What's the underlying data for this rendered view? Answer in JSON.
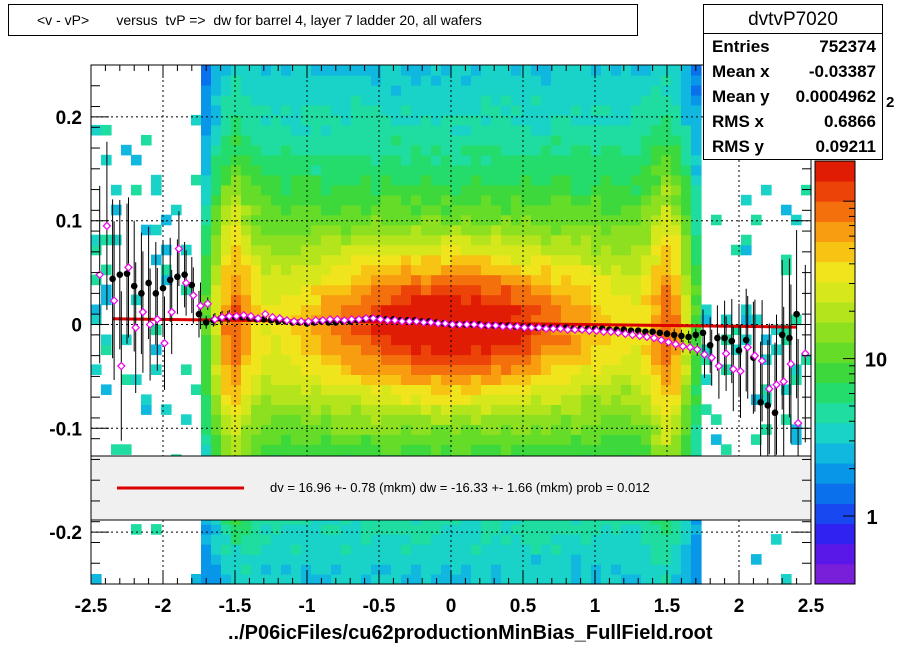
{
  "chart_data": {
    "type": "heatmap",
    "title": "<v - vP>       versus  tvP =>  dw for barrel 4, layer 7 ladder 20, all wafers",
    "xlabel": "../P06icFiles/cu62productionMinBias_FullField.root",
    "ylabel": "",
    "xlim": [
      -2.5,
      2.5
    ],
    "ylim": [
      -0.25,
      0.25
    ],
    "xticks": [
      "-2.5",
      "-2",
      "-1.5",
      "-1",
      "-0.5",
      "0",
      "0.5",
      "1",
      "1.5",
      "2",
      "2.5"
    ],
    "yticks": [
      "-0.2",
      "-0.1",
      "0",
      "0.1",
      "0.2"
    ],
    "grid": true,
    "colorbar": {
      "scale": "log",
      "labels": [
        "1",
        "10",
        "10^2"
      ],
      "partial_label": "2"
    },
    "stats": {
      "name": "dvtvP7020",
      "rows": [
        {
          "label": "Entries",
          "value": "752374"
        },
        {
          "label": "Mean x",
          "value": "-0.03387"
        },
        {
          "label": "Mean y",
          "value": "0.0004962"
        },
        {
          "label": "RMS x",
          "value": "0.6866"
        },
        {
          "label": "RMS y",
          "value": "0.09211"
        }
      ]
    },
    "fit_legend": "dv =   16.96 +-  0.78 (mkm) dw =  -16.33 +-  1.66 (mkm) prob = 0.012",
    "fit_line": {
      "x": [
        -2.35,
        2.4
      ],
      "y": [
        0.0055,
        -0.0025
      ],
      "color": "#dd0000"
    },
    "series": [
      {
        "marker": "filled-circle",
        "color": "#000000",
        "x": [
          -2.35,
          -2.3,
          -2.25,
          -2.2,
          -2.15,
          -2.1,
          -2.05,
          -2.0,
          -1.95,
          -1.9,
          -1.85,
          -1.8,
          -1.75,
          -1.7,
          -1.65,
          -1.6,
          -1.55,
          -1.5,
          -1.45,
          -1.4,
          -1.35,
          -1.3,
          -1.25,
          -1.2,
          -1.15,
          -1.1,
          -1.05,
          -1.0,
          -0.95,
          -0.9,
          -0.85,
          -0.8,
          -0.75,
          -0.7,
          -0.65,
          -0.6,
          -0.55,
          -0.5,
          -0.45,
          -0.4,
          -0.35,
          -0.3,
          -0.25,
          -0.2,
          -0.15,
          -0.1,
          -0.05,
          0.0,
          0.05,
          0.1,
          0.15,
          0.2,
          0.25,
          0.3,
          0.35,
          0.4,
          0.45,
          0.5,
          0.55,
          0.6,
          0.65,
          0.7,
          0.75,
          0.8,
          0.85,
          0.9,
          0.95,
          1.0,
          1.05,
          1.1,
          1.15,
          1.2,
          1.25,
          1.3,
          1.35,
          1.4,
          1.45,
          1.5,
          1.55,
          1.6,
          1.65,
          1.7,
          1.75,
          1.8,
          1.85,
          1.9,
          1.95,
          2.0,
          2.05,
          2.1,
          2.15,
          2.2,
          2.25,
          2.3,
          2.35,
          2.4
        ],
        "y": [
          0.044,
          0.048,
          0.049,
          0.037,
          0.03,
          0.04,
          0.03,
          0.035,
          0.043,
          0.046,
          0.048,
          0.038,
          0.01,
          0.002,
          0.004,
          0.006,
          0.007,
          0.007,
          0.007,
          0.006,
          0.005,
          0.005,
          0.004,
          0.003,
          0.003,
          0.002,
          0.002,
          0.001,
          0.002,
          0.003,
          0.002,
          0.002,
          0.003,
          0.003,
          0.004,
          0.005,
          0.006,
          0.006,
          0.005,
          0.005,
          0.004,
          0.004,
          0.004,
          0.003,
          0.003,
          0.002,
          0.001,
          0.0,
          0.0,
          0.0,
          0.0,
          0.0,
          -0.001,
          -0.001,
          -0.001,
          -0.001,
          -0.002,
          -0.002,
          -0.002,
          -0.003,
          -0.003,
          -0.003,
          -0.003,
          -0.003,
          -0.004,
          -0.004,
          -0.004,
          -0.004,
          -0.004,
          -0.005,
          -0.005,
          -0.005,
          -0.006,
          -0.006,
          -0.007,
          -0.007,
          -0.008,
          -0.009,
          -0.01,
          -0.011,
          -0.012,
          -0.01,
          -0.008,
          -0.02,
          -0.013,
          -0.013,
          -0.016,
          -0.025,
          -0.015,
          -0.032,
          -0.075,
          -0.078,
          -0.085,
          -0.01,
          -0.013,
          0.01
        ]
      },
      {
        "marker": "open-diamond",
        "color": "#ee00ee",
        "x": [
          -2.45,
          -2.4,
          -2.35,
          -2.3,
          -2.25,
          -2.2,
          -2.15,
          -2.1,
          -2.05,
          -2.0,
          -1.95,
          -1.9,
          -1.85,
          -1.8,
          -1.75,
          -1.7,
          -1.65,
          -1.6,
          -1.55,
          -1.5,
          -1.45,
          -1.4,
          -1.35,
          -1.3,
          -1.25,
          -1.2,
          -1.15,
          -1.1,
          -1.05,
          -1.0,
          -0.95,
          -0.9,
          -0.85,
          -0.8,
          -0.75,
          -0.7,
          -0.65,
          -0.6,
          -0.55,
          -0.5,
          -0.45,
          -0.4,
          -0.35,
          -0.3,
          -0.25,
          -0.2,
          -0.15,
          -0.1,
          -0.05,
          0.0,
          0.05,
          0.1,
          0.15,
          0.2,
          0.25,
          0.3,
          0.35,
          0.4,
          0.45,
          0.5,
          0.55,
          0.6,
          0.65,
          0.7,
          0.75,
          0.8,
          0.85,
          0.9,
          0.95,
          1.0,
          1.05,
          1.1,
          1.15,
          1.2,
          1.25,
          1.3,
          1.35,
          1.4,
          1.45,
          1.5,
          1.55,
          1.6,
          1.65,
          1.7,
          1.75,
          1.8,
          1.85,
          1.9,
          1.95,
          2.0,
          2.05,
          2.1,
          2.15,
          2.2,
          2.25,
          2.3,
          2.35,
          2.4,
          2.45
        ],
        "y": [
          0.048,
          0.095,
          0.023,
          -0.04,
          0.055,
          -0.003,
          0.012,
          0.0,
          0.005,
          -0.018,
          0.012,
          0.073,
          0.04,
          0.028,
          0.018,
          0.02,
          0.005,
          0.007,
          0.008,
          0.008,
          0.009,
          0.008,
          0.006,
          0.01,
          0.007,
          0.006,
          0.004,
          0.003,
          0.003,
          0.003,
          0.004,
          0.004,
          0.005,
          0.005,
          0.004,
          0.005,
          0.005,
          0.006,
          0.006,
          0.005,
          0.004,
          0.004,
          0.003,
          0.003,
          0.003,
          0.002,
          0.002,
          0.001,
          0.001,
          0.0,
          0.0,
          0.0,
          0.0,
          -0.001,
          -0.001,
          -0.001,
          -0.002,
          -0.002,
          -0.002,
          -0.003,
          -0.003,
          -0.003,
          -0.004,
          -0.004,
          -0.004,
          -0.005,
          -0.005,
          -0.005,
          -0.006,
          -0.006,
          -0.007,
          -0.007,
          -0.008,
          -0.009,
          -0.01,
          -0.011,
          -0.012,
          -0.013,
          -0.015,
          -0.017,
          -0.019,
          -0.021,
          -0.022,
          -0.024,
          -0.029,
          -0.032,
          -0.04,
          -0.028,
          -0.043,
          -0.045,
          -0.022,
          -0.03,
          -0.035,
          -0.062,
          -0.058,
          -0.055,
          -0.038,
          -0.095,
          -0.028
        ]
      }
    ]
  }
}
